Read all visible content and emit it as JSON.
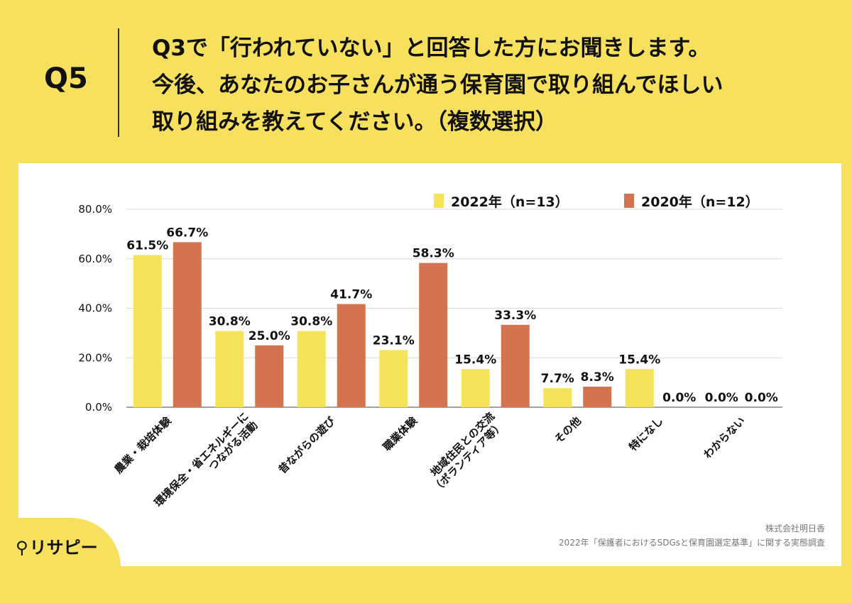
{
  "header": {
    "q_label": "Q5",
    "question_lines": [
      "Q3で「行われていない」と回答した方にお聞きします。",
      "今後、あなたのお子さんが通う保育園で取り組んでほしい",
      "取り組みを教えてください。（複数選択）"
    ]
  },
  "colors": {
    "background": "#f6e05e",
    "series_2022": "#f5e35a",
    "series_2020": "#d4734f",
    "grid": "#d9d9d9"
  },
  "chart_data": {
    "type": "bar",
    "categories": [
      "農業・栽培体験",
      "環境保全・省エネルギーにつながる活動",
      "昔ながらの遊び",
      "職業体験",
      "地域住民との交流（ボランティア等）",
      "その他",
      "特になし",
      "わからない"
    ],
    "category_label_lines": [
      [
        "農業・栽培体験"
      ],
      [
        "環境保全・省エネルギーに",
        "つながる活動"
      ],
      [
        "昔ながらの遊び"
      ],
      [
        "職業体験"
      ],
      [
        "地域住民との交流",
        "（ボランティア等）"
      ],
      [
        "その他"
      ],
      [
        "特になし"
      ],
      [
        "わからない"
      ]
    ],
    "series": [
      {
        "name": "2022年（n=13）",
        "values": [
          61.5,
          30.8,
          30.8,
          23.1,
          15.4,
          7.7,
          15.4,
          0.0
        ]
      },
      {
        "name": "2020年（n=12）",
        "values": [
          66.7,
          25.0,
          41.7,
          58.3,
          33.3,
          8.3,
          0.0,
          0.0
        ]
      }
    ],
    "ylim": [
      0,
      80
    ],
    "yticks": [
      "0.0%",
      "20.0%",
      "40.0%",
      "60.0%",
      "80.0%"
    ],
    "data_labels": [
      [
        "61.5%",
        "30.8%",
        "30.8%",
        "23.1%",
        "15.4%",
        "7.7%",
        "15.4%",
        "0.0%"
      ],
      [
        "66.7%",
        "25.0%",
        "41.7%",
        "58.3%",
        "33.3%",
        "8.3%",
        "0.0%",
        "0.0%"
      ]
    ],
    "grid": true,
    "legend_position": "top-right"
  },
  "footer": {
    "company": "株式会社明日香",
    "source": "2022年「保護者におけるSDGsと保育園選定基準」に関する実態調査",
    "logo_text": "リサピー"
  }
}
